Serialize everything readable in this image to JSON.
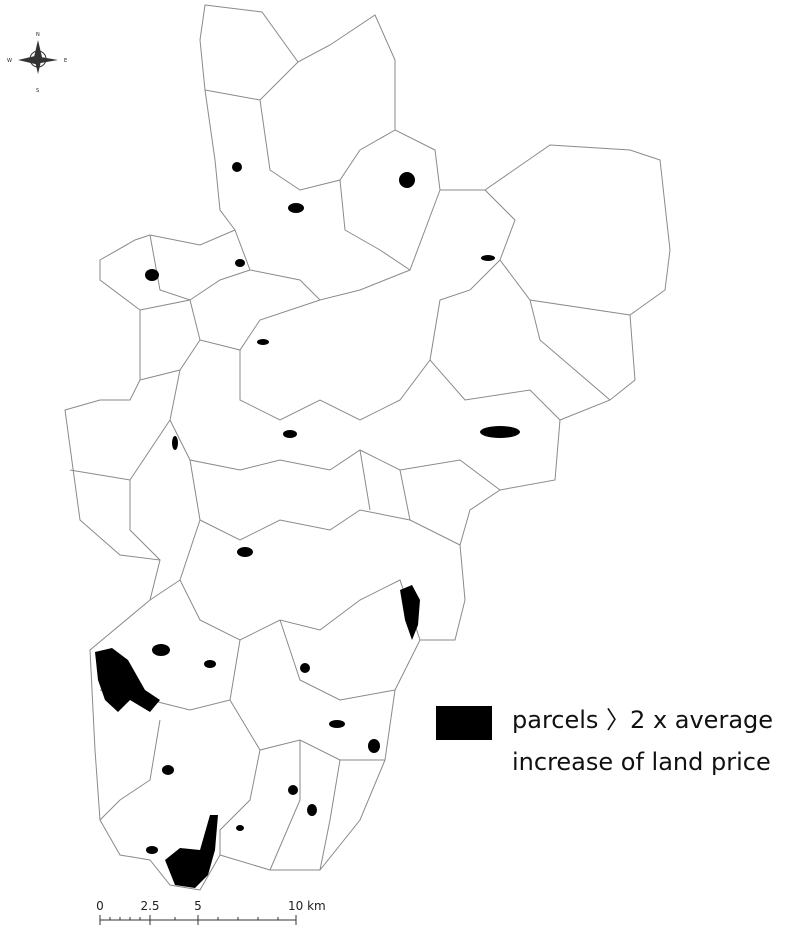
{
  "compass": {
    "north": "N",
    "south": "S",
    "east": "E",
    "west": "W"
  },
  "legend": {
    "line1": "parcels 〉2 x average",
    "line2": "increase of land price"
  },
  "scale_bar": {
    "labels": [
      "0",
      "2.5",
      "5",
      "10 km"
    ]
  }
}
